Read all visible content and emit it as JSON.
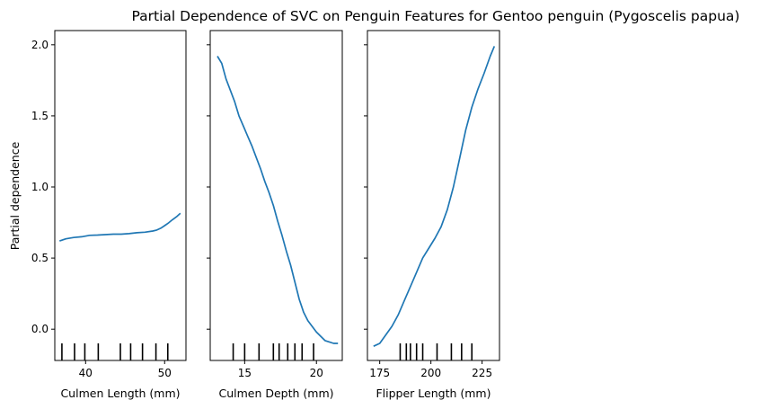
{
  "chart_data": {
    "type": "line",
    "title": "Partial Dependence of SVC on Penguin Features for Gentoo penguin (Pygoscelis papua)",
    "ylabel": "Partial dependence",
    "ylim": [
      -0.22,
      2.1
    ],
    "yticks": [
      0.0,
      0.5,
      1.0,
      1.5,
      2.0
    ],
    "ytick_labels": [
      "0.0",
      "0.5",
      "1.0",
      "1.5",
      "2.0"
    ],
    "line_color": "#1f77b4",
    "panels": [
      {
        "feature": "Culmen Length (mm)",
        "xlabel": "Culmen Length (mm)",
        "xlim": [
          36.1,
          52.7
        ],
        "xticks": [
          40,
          50
        ],
        "xtick_labels": [
          "40",
          "50"
        ],
        "deciles": [
          37.0,
          38.6,
          39.9,
          41.6,
          44.4,
          45.7,
          47.2,
          48.9,
          50.4
        ],
        "x": [
          36.7,
          37.5,
          38.5,
          39.5,
          40.5,
          41.5,
          42.5,
          43.5,
          44.5,
          45.5,
          46.5,
          47.5,
          48.5,
          49.0,
          49.5,
          50.0,
          50.5,
          51.0,
          51.5,
          52.0
        ],
        "y": [
          0.62,
          0.635,
          0.645,
          0.65,
          0.66,
          0.662,
          0.665,
          0.668,
          0.668,
          0.672,
          0.678,
          0.682,
          0.69,
          0.697,
          0.71,
          0.728,
          0.748,
          0.77,
          0.79,
          0.815
        ]
      },
      {
        "feature": "Culmen Depth (mm)",
        "xlabel": "Culmen Depth (mm)",
        "xlim": [
          12.6,
          21.8
        ],
        "xticks": [
          15,
          20
        ],
        "xtick_labels": [
          "15",
          "20"
        ],
        "deciles": [
          14.2,
          15.0,
          16.0,
          17.0,
          17.4,
          18.0,
          18.5,
          19.0,
          19.8
        ],
        "x": [
          13.1,
          13.4,
          13.7,
          14.0,
          14.3,
          14.6,
          14.9,
          15.2,
          15.5,
          15.8,
          16.1,
          16.4,
          16.7,
          17.0,
          17.3,
          17.6,
          17.9,
          18.2,
          18.5,
          18.8,
          19.1,
          19.4,
          19.7,
          20.0,
          20.3,
          20.6,
          20.9,
          21.2,
          21.5
        ],
        "y": [
          1.92,
          1.87,
          1.76,
          1.68,
          1.6,
          1.5,
          1.43,
          1.36,
          1.29,
          1.21,
          1.13,
          1.04,
          0.96,
          0.87,
          0.76,
          0.66,
          0.55,
          0.45,
          0.33,
          0.21,
          0.12,
          0.06,
          0.02,
          -0.02,
          -0.05,
          -0.08,
          -0.09,
          -0.1,
          -0.1
        ]
      },
      {
        "feature": "Flipper Length (mm)",
        "xlabel": "Flipper Length (mm)",
        "xlim": [
          169.0,
          233.5
        ],
        "xticks": [
          175,
          200,
          225
        ],
        "xtick_labels": [
          "175",
          "200",
          "225"
        ],
        "deciles": [
          185,
          188,
          190,
          193,
          196,
          203,
          210,
          215,
          220
        ],
        "x": [
          172.0,
          175.0,
          178.0,
          181.0,
          184.0,
          187.0,
          190.0,
          193.0,
          196.0,
          199.0,
          202.0,
          205.0,
          208.0,
          211.0,
          214.0,
          217.0,
          220.0,
          223.0,
          226.0,
          229.0,
          231.0
        ],
        "y": [
          -0.12,
          -0.1,
          -0.04,
          0.02,
          0.1,
          0.2,
          0.3,
          0.4,
          0.5,
          0.57,
          0.64,
          0.72,
          0.84,
          1.0,
          1.2,
          1.4,
          1.56,
          1.69,
          1.8,
          1.92,
          1.99
        ]
      }
    ]
  }
}
